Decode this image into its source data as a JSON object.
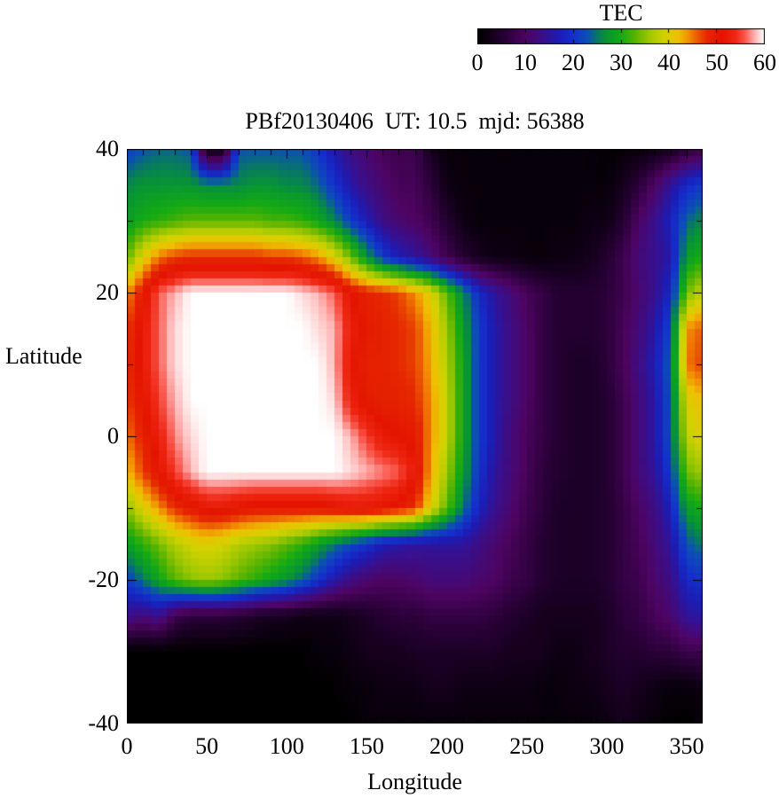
{
  "title": "PBf20130406  UT: 10.5  mjd: 56388",
  "colorbar": {
    "title": "TEC",
    "min": 0,
    "max": 60,
    "tick_labels": [
      "0",
      "10",
      "20",
      "30",
      "40",
      "50",
      "60"
    ],
    "tick_values": [
      0,
      10,
      20,
      30,
      40,
      50,
      60
    ]
  },
  "axes": {
    "xlabel": "Longitude",
    "ylabel": "Latitude",
    "xtick_labels": [
      "0",
      "50",
      "100",
      "150",
      "200",
      "250",
      "300",
      "350"
    ],
    "xtick_values": [
      0,
      50,
      100,
      150,
      200,
      250,
      300,
      350
    ],
    "ytick_labels": [
      "40",
      "20",
      "0",
      "-20",
      "-40"
    ],
    "ytick_values": [
      40,
      20,
      0,
      -20,
      -40
    ],
    "xlim": [
      0,
      360
    ],
    "ylim": [
      -40,
      40
    ],
    "x_minor_step": 10,
    "y_minor_step": 10
  },
  "chart_data": {
    "type": "heatmap",
    "title": "PBf20130406  UT: 10.5  mjd: 56388",
    "xlabel": "Longitude",
    "ylabel": "Latitude",
    "zlabel": "TEC",
    "zlim": [
      0,
      60
    ],
    "grid": false,
    "legend_position": "top-right-colorbar",
    "x_lon": [
      0,
      10,
      20,
      30,
      40,
      50,
      60,
      70,
      80,
      90,
      100,
      110,
      120,
      130,
      140,
      150,
      160,
      170,
      180,
      190,
      200,
      210,
      220,
      230,
      240,
      250,
      260,
      270,
      280,
      290,
      300,
      310,
      320,
      330,
      340,
      350,
      360
    ],
    "y_lat": [
      40,
      35,
      30,
      25,
      20,
      15,
      10,
      5,
      0,
      -5,
      -10,
      -15,
      -20,
      -25,
      -30,
      -35,
      -40
    ],
    "values": [
      [
        21,
        23,
        24,
        24,
        23,
        2,
        2,
        23,
        23,
        23,
        23,
        23,
        20,
        16,
        13,
        11,
        9,
        8,
        8,
        3,
        1,
        1,
        1,
        1,
        1,
        1,
        1,
        1,
        1,
        1,
        0,
        1,
        1,
        2,
        3,
        6,
        7
      ],
      [
        26,
        27,
        27,
        27,
        27,
        26,
        26,
        26,
        27,
        27,
        26,
        26,
        24,
        20,
        16,
        13,
        11,
        9,
        9,
        6,
        2,
        1,
        1,
        1,
        1,
        1,
        1,
        1,
        1,
        1,
        1,
        3,
        6,
        10,
        15,
        19,
        21
      ],
      [
        28,
        30,
        31,
        32,
        33,
        33,
        33,
        33,
        33,
        32,
        32,
        31,
        29,
        26,
        21,
        17,
        13,
        11,
        10,
        8,
        5,
        2,
        1,
        1,
        1,
        1,
        1,
        1,
        1,
        2,
        2,
        5,
        10,
        14,
        18,
        24,
        26
      ],
      [
        33,
        40,
        45,
        47,
        48,
        48,
        48,
        48,
        48,
        47,
        47,
        46,
        44,
        40,
        34,
        27,
        21,
        17,
        15,
        12,
        8,
        5,
        3,
        2,
        2,
        1,
        1,
        2,
        2,
        3,
        5,
        8,
        12,
        14,
        16,
        28,
        30
      ],
      [
        44,
        50,
        56,
        58,
        60,
        60,
        60,
        60,
        60,
        60,
        60,
        59,
        58,
        56,
        51,
        49,
        48,
        47,
        44,
        40,
        33,
        26,
        19,
        15,
        12,
        9,
        7,
        5,
        5,
        5,
        6,
        8,
        11,
        14,
        19,
        34,
        38
      ],
      [
        47,
        52,
        56,
        59,
        60,
        60,
        60,
        60,
        60,
        60,
        60,
        60,
        59,
        58,
        53,
        50,
        49,
        48,
        47,
        42,
        36,
        28,
        21,
        16,
        13,
        10,
        7,
        5,
        5,
        5,
        6,
        9,
        12,
        16,
        22,
        44,
        46
      ],
      [
        48,
        52,
        56,
        59,
        60,
        60,
        60,
        60,
        60,
        60,
        60,
        60,
        60,
        58,
        52,
        49,
        49,
        48,
        47,
        43,
        37,
        29,
        21,
        16,
        13,
        10,
        7,
        5,
        4,
        4,
        6,
        9,
        13,
        17,
        24,
        45,
        47
      ],
      [
        47,
        51,
        55,
        58,
        60,
        60,
        60,
        60,
        60,
        60,
        60,
        60,
        60,
        59,
        53,
        50,
        49,
        49,
        48,
        44,
        38,
        29,
        21,
        16,
        13,
        10,
        7,
        5,
        4,
        4,
        5,
        8,
        12,
        16,
        23,
        40,
        42
      ],
      [
        45,
        49,
        53,
        57,
        59,
        60,
        60,
        60,
        60,
        60,
        60,
        60,
        60,
        60,
        58,
        55,
        52,
        51,
        50,
        44,
        38,
        29,
        21,
        16,
        12,
        9,
        7,
        5,
        4,
        4,
        5,
        8,
        12,
        16,
        23,
        38,
        40
      ],
      [
        42,
        47,
        51,
        55,
        58,
        60,
        60,
        60,
        60,
        60,
        60,
        60,
        60,
        60,
        59,
        58,
        57,
        56,
        52,
        43,
        36,
        28,
        20,
        15,
        12,
        9,
        6,
        5,
        4,
        4,
        5,
        8,
        12,
        15,
        21,
        34,
        36
      ],
      [
        35,
        40,
        44,
        48,
        50,
        52,
        52,
        51,
        50,
        50,
        50,
        50,
        50,
        51,
        52,
        52,
        51,
        50,
        48,
        40,
        33,
        25,
        18,
        14,
        11,
        8,
        6,
        4,
        4,
        4,
        5,
        7,
        10,
        13,
        18,
        28,
        30
      ],
      [
        28,
        31,
        34,
        37,
        39,
        40,
        39,
        37,
        36,
        35,
        33,
        31,
        28,
        25,
        22,
        20,
        17,
        16,
        15,
        15,
        15,
        15,
        13,
        11,
        9,
        7,
        5,
        4,
        4,
        4,
        5,
        7,
        9,
        12,
        15,
        23,
        25
      ],
      [
        21,
        25,
        29,
        33,
        35,
        36,
        35,
        33,
        31,
        29,
        27,
        24,
        20,
        16,
        13,
        11,
        10,
        10,
        11,
        12,
        12,
        12,
        11,
        10,
        8,
        7,
        5,
        4,
        4,
        4,
        5,
        7,
        8,
        11,
        13,
        19,
        20
      ],
      [
        14,
        12,
        14,
        8,
        6,
        6,
        6,
        5,
        4,
        3,
        3,
        2,
        2,
        2,
        3,
        4,
        5,
        6,
        6,
        7,
        7,
        7,
        7,
        6,
        5,
        4,
        3,
        3,
        3,
        3,
        4,
        6,
        7,
        9,
        11,
        15,
        16
      ],
      [
        0,
        0,
        0,
        0,
        0,
        0,
        0,
        0,
        0,
        0,
        0,
        0,
        1,
        1,
        2,
        3,
        3,
        3,
        4,
        4,
        4,
        4,
        4,
        4,
        3,
        3,
        3,
        2,
        2,
        3,
        4,
        5,
        5,
        6,
        6,
        8,
        8
      ],
      [
        0,
        0,
        0,
        0,
        0,
        0,
        0,
        0,
        0,
        0,
        0,
        0,
        0,
        0,
        1,
        1,
        2,
        2,
        2,
        3,
        3,
        2,
        2,
        2,
        2,
        2,
        1,
        1,
        2,
        2,
        3,
        4,
        3,
        2,
        1,
        1,
        2
      ],
      [
        0,
        0,
        0,
        0,
        0,
        0,
        0,
        0,
        0,
        0,
        0,
        0,
        0,
        0,
        0,
        1,
        1,
        1,
        1,
        1,
        1,
        1,
        1,
        1,
        1,
        1,
        1,
        1,
        1,
        1,
        2,
        3,
        2,
        1,
        0,
        0,
        1
      ]
    ],
    "palette_stops": [
      [
        0,
        "#000000"
      ],
      [
        5,
        "#230030"
      ],
      [
        10,
        "#4e0462"
      ],
      [
        14,
        "#38108e"
      ],
      [
        17,
        "#1c1cb4"
      ],
      [
        20,
        "#1430cc"
      ],
      [
        23,
        "#0c50b4"
      ],
      [
        25,
        "#087864"
      ],
      [
        27,
        "#089632"
      ],
      [
        30,
        "#14aa14"
      ],
      [
        33,
        "#5ab400"
      ],
      [
        36,
        "#a0c800"
      ],
      [
        39,
        "#d2d200"
      ],
      [
        42,
        "#eec000"
      ],
      [
        44,
        "#f29200"
      ],
      [
        46,
        "#ec5a00"
      ],
      [
        48,
        "#e62800"
      ],
      [
        51,
        "#e41400"
      ],
      [
        54,
        "#ee2814"
      ],
      [
        56,
        "#fa5a50"
      ],
      [
        58,
        "#ffb4b4"
      ],
      [
        60,
        "#ffffff"
      ]
    ]
  }
}
